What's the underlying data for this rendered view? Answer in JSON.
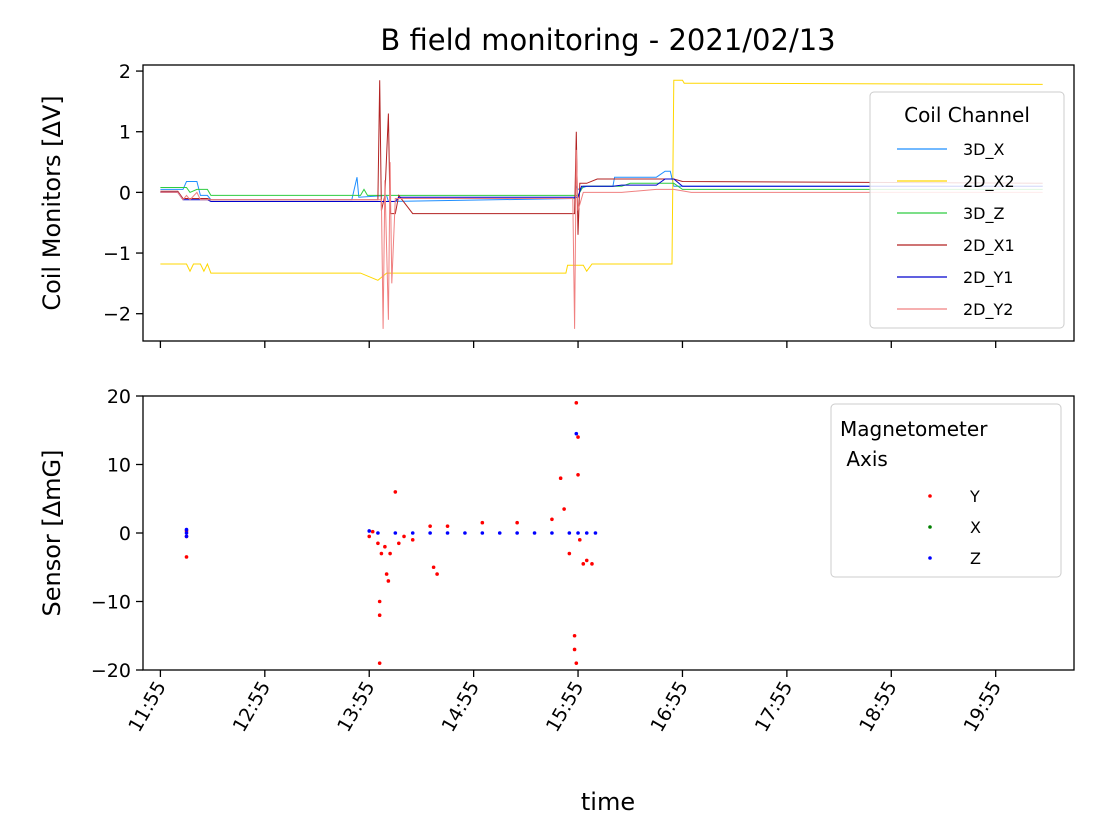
{
  "chart_data": {
    "type": "line",
    "title": "B field monitoring - 2021/02/13",
    "xlabel": "time",
    "x_ticks": [
      "11:55",
      "12:55",
      "13:55",
      "14:55",
      "15:55",
      "16:55",
      "17:55",
      "18:55",
      "19:55"
    ],
    "xlim": [
      "11:45",
      "20:40"
    ],
    "panels": [
      {
        "name": "coil",
        "type": "line",
        "ylabel": "Coil Monitors [ΔV]",
        "ylim": [
          -2.45,
          2.1
        ],
        "yticks": [
          2,
          1,
          0,
          -1,
          -2
        ],
        "ytick_labels": [
          "2",
          "1",
          "0",
          "−1",
          "−2"
        ],
        "show_x_tick_labels": false,
        "legend": {
          "title": "Coil Channel",
          "placement": "upper-right"
        },
        "series": [
          {
            "name": "3D_X",
            "color": "#1f8fff",
            "points": [
              [
                "11:55",
                0.05
              ],
              [
                "12:08",
                0.05
              ],
              [
                "12:10",
                0.18
              ],
              [
                "12:16",
                0.18
              ],
              [
                "12:18",
                -0.05
              ],
              [
                "12:22",
                -0.05
              ],
              [
                "12:24",
                -0.12
              ],
              [
                "12:30",
                -0.12
              ],
              [
                "13:45",
                -0.12
              ],
              [
                "13:48",
                0.25
              ],
              [
                "13:49",
                -0.08
              ],
              [
                "14:05",
                -0.05
              ],
              [
                "14:06",
                -0.15
              ],
              [
                "15:53",
                -0.1
              ],
              [
                "15:54",
                0.1
              ],
              [
                "15:55",
                0.05
              ],
              [
                "16:00",
                0.1
              ],
              [
                "16:15",
                0.1
              ],
              [
                "16:16",
                0.25
              ],
              [
                "16:40",
                0.25
              ],
              [
                "16:45",
                0.35
              ],
              [
                "16:48",
                0.35
              ],
              [
                "16:50",
                0.1
              ],
              [
                "20:22",
                0.1
              ]
            ]
          },
          {
            "name": "2D_X2",
            "color": "#ffd700",
            "points": [
              [
                "11:55",
                -1.18
              ],
              [
                "12:10",
                -1.18
              ],
              [
                "12:12",
                -1.3
              ],
              [
                "12:14",
                -1.18
              ],
              [
                "12:18",
                -1.18
              ],
              [
                "12:20",
                -1.3
              ],
              [
                "12:22",
                -1.18
              ],
              [
                "12:24",
                -1.33
              ],
              [
                "13:50",
                -1.33
              ],
              [
                "14:00",
                -1.45
              ],
              [
                "14:05",
                -1.33
              ],
              [
                "15:48",
                -1.33
              ],
              [
                "15:49",
                -1.2
              ],
              [
                "15:53",
                -1.2
              ],
              [
                "15:58",
                -1.2
              ],
              [
                "16:00",
                -1.3
              ],
              [
                "16:03",
                -1.18
              ],
              [
                "16:25",
                -1.18
              ],
              [
                "16:49",
                -1.18
              ],
              [
                "16:50",
                1.85
              ],
              [
                "16:55",
                1.85
              ],
              [
                "16:56",
                1.8
              ],
              [
                "17:10",
                1.8
              ],
              [
                "20:22",
                1.78
              ]
            ]
          },
          {
            "name": "3D_Z",
            "color": "#2ecc40",
            "points": [
              [
                "11:55",
                0.08
              ],
              [
                "12:10",
                0.08
              ],
              [
                "12:12",
                0.0
              ],
              [
                "12:16",
                0.05
              ],
              [
                "12:22",
                0.05
              ],
              [
                "12:24",
                -0.05
              ],
              [
                "13:50",
                -0.05
              ],
              [
                "13:52",
                0.05
              ],
              [
                "13:54",
                -0.05
              ],
              [
                "14:05",
                -0.05
              ],
              [
                "15:55",
                -0.05
              ],
              [
                "15:58",
                0.1
              ],
              [
                "16:20",
                0.1
              ],
              [
                "16:25",
                0.15
              ],
              [
                "16:50",
                0.15
              ],
              [
                "16:55",
                0.05
              ],
              [
                "20:22",
                0.05
              ]
            ]
          },
          {
            "name": "2D_X1",
            "color": "#b22222",
            "points": [
              [
                "11:55",
                0.02
              ],
              [
                "12:05",
                0.02
              ],
              [
                "12:08",
                -0.1
              ],
              [
                "12:22",
                -0.1
              ],
              [
                "12:24",
                -0.12
              ],
              [
                "14:00",
                -0.12
              ],
              [
                "14:01",
                1.85
              ],
              [
                "14:02",
                -0.3
              ],
              [
                "14:04",
                -0.05
              ],
              [
                "14:06",
                1.3
              ],
              [
                "14:07",
                -0.35
              ],
              [
                "14:10",
                -0.35
              ],
              [
                "14:12",
                -0.05
              ],
              [
                "14:20",
                -0.35
              ],
              [
                "15:53",
                -0.35
              ],
              [
                "15:54",
                1.0
              ],
              [
                "15:55",
                -0.7
              ],
              [
                "15:56",
                0.15
              ],
              [
                "16:00",
                0.15
              ],
              [
                "16:06",
                0.22
              ],
              [
                "16:25",
                0.22
              ],
              [
                "16:40",
                0.22
              ],
              [
                "16:50",
                0.22
              ],
              [
                "16:55",
                0.18
              ],
              [
                "20:22",
                0.15
              ]
            ]
          },
          {
            "name": "2D_Y1",
            "color": "#0000cd",
            "points": [
              [
                "11:55",
                0.0
              ],
              [
                "12:05",
                0.0
              ],
              [
                "12:08",
                -0.12
              ],
              [
                "12:22",
                -0.12
              ],
              [
                "12:24",
                -0.15
              ],
              [
                "14:10",
                -0.15
              ],
              [
                "14:12",
                -0.08
              ],
              [
                "15:55",
                -0.08
              ],
              [
                "15:57",
                0.1
              ],
              [
                "16:15",
                0.1
              ],
              [
                "16:20",
                0.12
              ],
              [
                "16:40",
                0.12
              ],
              [
                "16:45",
                0.22
              ],
              [
                "16:50",
                0.22
              ],
              [
                "16:55",
                0.1
              ],
              [
                "20:22",
                0.1
              ]
            ]
          },
          {
            "name": "2D_Y2",
            "color": "#f08080",
            "points": [
              [
                "11:55",
                0.0
              ],
              [
                "12:05",
                0.0
              ],
              [
                "12:08",
                -0.12
              ],
              [
                "12:10",
                -0.05
              ],
              [
                "12:12",
                -0.12
              ],
              [
                "12:16",
                0.0
              ],
              [
                "12:18",
                -0.12
              ],
              [
                "12:22",
                -0.12
              ],
              [
                "13:55",
                -0.12
              ],
              [
                "14:02",
                -0.12
              ],
              [
                "14:03",
                -2.25
              ],
              [
                "14:04",
                0.2
              ],
              [
                "14:06",
                -2.1
              ],
              [
                "14:07",
                0.5
              ],
              [
                "14:08",
                -1.5
              ],
              [
                "14:10",
                -0.1
              ],
              [
                "15:52",
                -0.1
              ],
              [
                "15:53",
                -2.25
              ],
              [
                "15:54",
                0.7
              ],
              [
                "15:55",
                -0.3
              ],
              [
                "15:58",
                0.0
              ],
              [
                "16:20",
                0.0
              ],
              [
                "16:40",
                0.05
              ],
              [
                "16:50",
                0.05
              ],
              [
                "17:00",
                0.0
              ],
              [
                "20:22",
                0.0
              ]
            ]
          }
        ]
      },
      {
        "name": "sensor",
        "type": "scatter",
        "ylabel": "Sensor [ΔmG]",
        "ylim": [
          -20,
          20
        ],
        "yticks": [
          20,
          10,
          0,
          -10,
          -20
        ],
        "ytick_labels": [
          "20",
          "10",
          "0",
          "−10",
          "−20"
        ],
        "show_x_tick_labels": true,
        "legend": {
          "title_lines": [
            "Magnetometer",
            " Axis"
          ],
          "placement": "upper-right"
        },
        "series": [
          {
            "name": "Y",
            "color": "#ff0000",
            "points": [
              [
                "12:10",
                0.3
              ],
              [
                "12:10",
                -0.5
              ],
              [
                "12:10",
                -3.5
              ],
              [
                "13:55",
                -0.5
              ],
              [
                "13:57",
                0.2
              ],
              [
                "14:00",
                -1.5
              ],
              [
                "14:01",
                -10.0
              ],
              [
                "14:01",
                -12.0
              ],
              [
                "14:01",
                -19.0
              ],
              [
                "14:02",
                -3.0
              ],
              [
                "14:04",
                -2.0
              ],
              [
                "14:05",
                -6.0
              ],
              [
                "14:06",
                -7.0
              ],
              [
                "14:07",
                -3.0
              ],
              [
                "14:10",
                6.0
              ],
              [
                "14:12",
                -1.5
              ],
              [
                "14:15",
                -0.5
              ],
              [
                "14:20",
                -1.0
              ],
              [
                "14:30",
                1.0
              ],
              [
                "14:32",
                -5.0
              ],
              [
                "14:34",
                -6.0
              ],
              [
                "14:40",
                1.0
              ],
              [
                "15:00",
                1.5
              ],
              [
                "15:20",
                1.5
              ],
              [
                "15:40",
                2.0
              ],
              [
                "15:45",
                8.0
              ],
              [
                "15:47",
                3.5
              ],
              [
                "15:50",
                -3.0
              ],
              [
                "15:53",
                -15.0
              ],
              [
                "15:53",
                -17.0
              ],
              [
                "15:54",
                -19.0
              ],
              [
                "15:54",
                19.0
              ],
              [
                "15:55",
                14.0
              ],
              [
                "15:55",
                8.5
              ],
              [
                "15:56",
                -1.0
              ],
              [
                "15:58",
                -4.5
              ],
              [
                "16:00",
                -4.0
              ],
              [
                "16:03",
                -4.5
              ]
            ]
          },
          {
            "name": "X",
            "color": "#008000",
            "points": []
          },
          {
            "name": "Z",
            "color": "#0000ff",
            "points": [
              [
                "12:10",
                0.5
              ],
              [
                "12:10",
                0.0
              ],
              [
                "12:10",
                -0.5
              ],
              [
                "13:55",
                0.3
              ],
              [
                "14:00",
                0.0
              ],
              [
                "14:10",
                0.0
              ],
              [
                "14:20",
                0.0
              ],
              [
                "14:30",
                0.0
              ],
              [
                "14:40",
                0.0
              ],
              [
                "14:50",
                0.0
              ],
              [
                "15:00",
                0.0
              ],
              [
                "15:10",
                0.0
              ],
              [
                "15:20",
                0.0
              ],
              [
                "15:30",
                0.0
              ],
              [
                "15:40",
                0.0
              ],
              [
                "15:50",
                0.0
              ],
              [
                "15:54",
                14.5
              ],
              [
                "15:55",
                0.0
              ],
              [
                "16:00",
                0.0
              ],
              [
                "16:05",
                0.0
              ]
            ]
          }
        ]
      }
    ]
  }
}
